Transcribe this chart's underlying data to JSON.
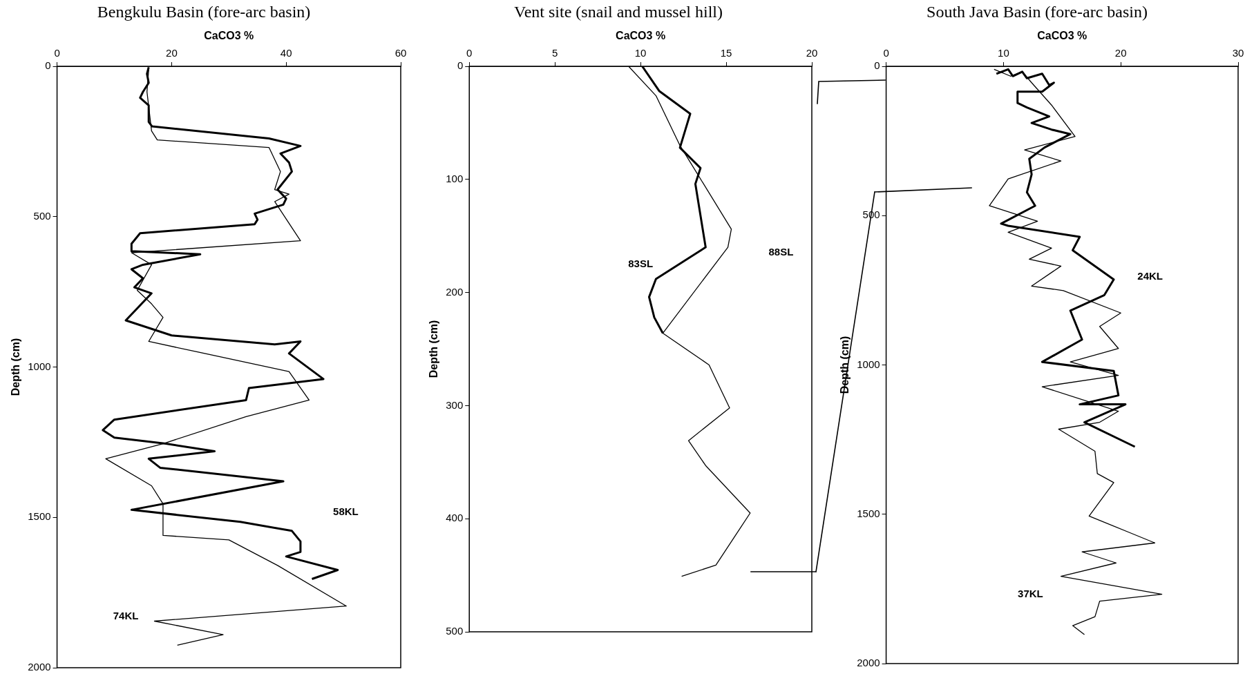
{
  "chart_data": [
    {
      "type": "line",
      "title": "Bengkulu Basin (fore-arc basin)",
      "xlabel": "CaCO3 %",
      "ylabel": "Depth (cm)",
      "xlim": [
        0,
        60
      ],
      "xticks": [
        0,
        20,
        40,
        60
      ],
      "ylim": [
        2000,
        0
      ],
      "yticks": [
        0,
        500,
        1000,
        1500,
        2000
      ],
      "marker": "none",
      "line_style": "solid",
      "series": [
        {
          "color": "#000000",
          "x": [
            16,
            15.7,
            16,
            15,
            14.5,
            16,
            16,
            16.6,
            37,
            42.5,
            39,
            40.5,
            41,
            38.5,
            40,
            39.5,
            34.5,
            35,
            34.5,
            14.5,
            13,
            13,
            25,
            15,
            13,
            15,
            13.5,
            16.5,
            12,
            20,
            38,
            42.5,
            40.5,
            46.5,
            33.5,
            33,
            10,
            8,
            10,
            19,
            27.5,
            16,
            18,
            39.5,
            13,
            32,
            41,
            42.5,
            42.5,
            40,
            49,
            44.5
          ],
          "values": [
            3,
            25,
            55,
            85,
            105,
            130,
            185,
            200,
            240,
            265,
            290,
            320,
            350,
            410,
            440,
            460,
            490,
            510,
            525,
            555,
            590,
            615,
            625,
            660,
            675,
            705,
            735,
            755,
            845,
            895,
            925,
            915,
            955,
            1040,
            1070,
            1110,
            1175,
            1210,
            1235,
            1255,
            1280,
            1305,
            1335,
            1380,
            1475,
            1515,
            1545,
            1580,
            1615,
            1630,
            1675,
            1705
          ]
        },
        {
          "color": "#000000",
          "x": [
            16,
            15.7,
            16.5,
            17.5,
            37,
            39,
            38,
            40.5,
            38,
            42.5,
            13,
            16.5,
            14,
            16.5,
            18.5,
            16,
            40.5,
            44,
            33,
            18.5,
            8.5,
            16.5,
            18.5,
            18.5,
            30,
            38.5,
            50.5,
            17,
            29,
            21
          ],
          "values": [
            10,
            85,
            215,
            245,
            270,
            350,
            410,
            425,
            450,
            580,
            620,
            660,
            745,
            790,
            835,
            915,
            1015,
            1110,
            1165,
            1255,
            1305,
            1395,
            1455,
            1560,
            1575,
            1660,
            1795,
            1845,
            1890,
            1925
          ]
        }
      ],
      "annotations": [
        "58KL",
        "74KL"
      ]
    },
    {
      "type": "line",
      "title": "Vent site (snail and mussel hill)",
      "xlabel": "CaCO3 %",
      "ylabel": "Depth (cm)",
      "xlim": [
        0,
        20
      ],
      "xticks": [
        0,
        5,
        10,
        15,
        20
      ],
      "ylim": [
        500,
        0
      ],
      "yticks": [
        0,
        100,
        200,
        300,
        400,
        500
      ],
      "marker": "none",
      "line_style": "solid",
      "series": [
        {
          "color": "#000000",
          "x": [
            10.1,
            11.1,
            12.9,
            12.3,
            13.5,
            13.2,
            13.8,
            10.9,
            10.5,
            10.8,
            11.3
          ],
          "values": [
            0,
            22,
            42,
            72,
            90,
            104,
            160,
            188,
            204,
            222,
            236
          ]
        },
        {
          "color": "#000000",
          "x": [
            9.3,
            10.9,
            12.3,
            15.3,
            15.1,
            11.3,
            14,
            15.2,
            12.8,
            13.8,
            16.4,
            14.4,
            12.4
          ],
          "values": [
            0,
            26,
            70,
            144,
            160,
            236,
            264,
            302,
            331,
            353,
            395,
            441,
            451
          ]
        }
      ],
      "annotations": [
        "88SL",
        "83SL"
      ]
    },
    {
      "type": "line",
      "title": "South Java Basin (fore-arc basin)",
      "xlabel": "CaCO3 %",
      "ylabel": "Depth (cm)",
      "xlim": [
        0,
        30
      ],
      "xticks": [
        0,
        10,
        20,
        30
      ],
      "ylim": [
        2000,
        0
      ],
      "yticks": [
        0,
        500,
        1000,
        1500,
        2000
      ],
      "marker": "none",
      "line_style": "solid",
      "series": [
        {
          "color": "#000000",
          "x": [
            9.4,
            10.4,
            10.8,
            11.6,
            12,
            13.3,
            13.9,
            14.3,
            13.3,
            11.2,
            11.2,
            12,
            13.9,
            12.4,
            14.1,
            15.7,
            13.5,
            12.2,
            12.4,
            12,
            12.7,
            9.8,
            10.4,
            16.5,
            15.9,
            19.4,
            18.6,
            15.7,
            16.7,
            13.3,
            19.4,
            19.8,
            16.5,
            20.4,
            16.9,
            21.2
          ],
          "values": [
            25,
            10,
            33,
            18,
            40,
            25,
            63,
            55,
            85,
            85,
            123,
            138,
            168,
            190,
            212,
            227,
            272,
            310,
            362,
            422,
            467,
            527,
            534,
            571,
            616,
            714,
            766,
            818,
            915,
            990,
            1020,
            1102,
            1132,
            1132,
            1192,
            1274
          ]
        },
        {
          "color": "#000000",
          "x": [
            9.2,
            10.6,
            11.6,
            12.4,
            14.1,
            16.1,
            11.8,
            14.9,
            10.4,
            8.8,
            12.9,
            10.4,
            14.1,
            12.2,
            14.9,
            12.4,
            15.1,
            20,
            18.2,
            19.8,
            15.7,
            19.8,
            13.3,
            19.8,
            18.2,
            14.7,
            17.8,
            18,
            19.4,
            17.3,
            20.6,
            22.9,
            16.7,
            19.6,
            14.9,
            23.5,
            18.2,
            17.8,
            15.9,
            16.9
          ],
          "values": [
            10,
            33,
            18,
            55,
            130,
            235,
            280,
            317,
            377,
            467,
            519,
            556,
            609,
            646,
            669,
            736,
            751,
            826,
            871,
            945,
            990,
            1035,
            1073,
            1155,
            1192,
            1215,
            1289,
            1364,
            1394,
            1506,
            1559,
            1596,
            1626,
            1663,
            1708,
            1768,
            1791,
            1843,
            1873,
            1903
          ]
        }
      ],
      "annotations": [
        "24KL",
        "37KL"
      ]
    }
  ]
}
